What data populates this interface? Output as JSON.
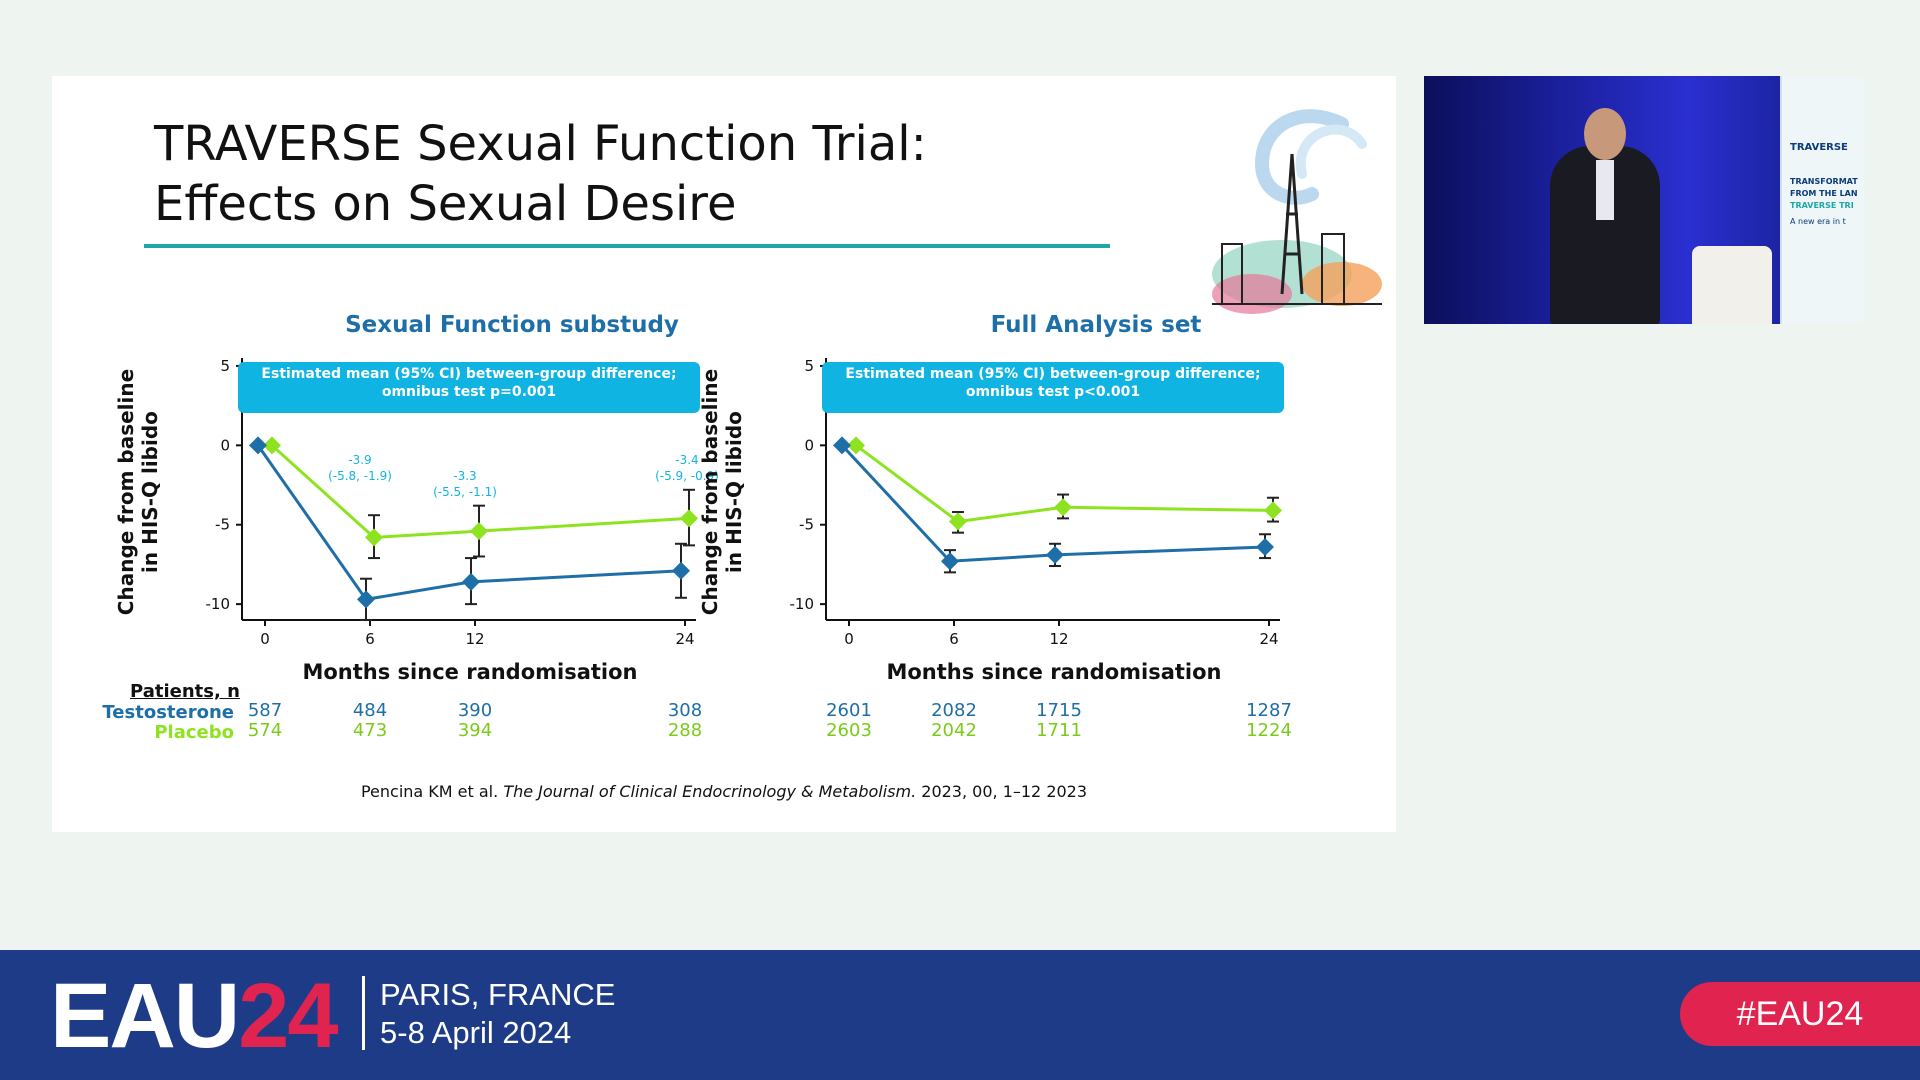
{
  "slide": {
    "title_line1": "TRAVERSE Sexual Function Trial:",
    "title_line2": "Effects on Sexual Desire",
    "citation_authors": "Pencina KM et al.",
    "citation_journal": "The Journal of Clinical Endocrinology & Metabolism.",
    "citation_rest": "2023, 00, 1–12 2023",
    "patients_label": "Patients, n",
    "testosterone_label": "Testosterone",
    "placebo_label": "Placebo"
  },
  "colors": {
    "testosterone": "#1e6fa8",
    "placebo": "#8ee320",
    "banner": "#10b4e2",
    "title_rule": "#1ea7a5",
    "footer": "#1e3b87",
    "accent_red": "#e0234f"
  },
  "chart_data": [
    {
      "type": "line",
      "title": "Sexual Function substudy",
      "banner_line1": "Estimated mean (95% CI) between-group difference;",
      "banner_line2": "omnibus test p=0.001",
      "ylabel_line1": "Change from baseline",
      "ylabel_line2": "in HIS-Q libido",
      "xlabel": "Months since randomisation",
      "x": [
        0,
        6,
        12,
        24
      ],
      "xticks": [
        "0",
        "6",
        "12",
        "24"
      ],
      "yticks": [
        "5",
        "0",
        "-5",
        "-10"
      ],
      "ylim": [
        -11,
        5.5
      ],
      "series": [
        {
          "name": "Testosterone",
          "values": [
            0,
            -9.7,
            -8.6,
            -7.9
          ],
          "ci_low": [
            0,
            -11.0,
            -10.0,
            -9.6
          ],
          "ci_high": [
            0,
            -8.4,
            -7.1,
            -6.2
          ]
        },
        {
          "name": "Placebo",
          "values": [
            0,
            -5.8,
            -5.4,
            -4.6
          ],
          "ci_low": [
            0,
            -7.1,
            -7.0,
            -6.3
          ],
          "ci_high": [
            0,
            -4.4,
            -3.8,
            -2.8
          ]
        }
      ],
      "annotations": [
        {
          "x": 6,
          "label1": "-3.9",
          "label2": "(-5.8, -1.9)"
        },
        {
          "x": 12,
          "label1": "-3.3",
          "label2": "(-5.5, -1.1)"
        },
        {
          "x": 24,
          "label1": "-3.4",
          "label2": "(-5.9, -0.9)"
        }
      ],
      "patients": {
        "testosterone": [
          "587",
          "484",
          "390",
          "308"
        ],
        "placebo": [
          "574",
          "473",
          "394",
          "288"
        ]
      }
    },
    {
      "type": "line",
      "title": "Full Analysis set",
      "banner_line1": "Estimated mean (95% CI) between-group difference;",
      "banner_line2": "omnibus test p<0.001",
      "ylabel_line1": "Change from baseline",
      "ylabel_line2": "in HIS-Q libido",
      "xlabel": "Months since randomisation",
      "x": [
        0,
        6,
        12,
        24
      ],
      "xticks": [
        "0",
        "6",
        "12",
        "24"
      ],
      "yticks": [
        "5",
        "0",
        "-5",
        "-10"
      ],
      "ylim": [
        -11,
        5.5
      ],
      "series": [
        {
          "name": "Testosterone",
          "values": [
            0,
            -7.3,
            -6.9,
            -6.4
          ],
          "ci_low": [
            0,
            -8.0,
            -7.6,
            -7.1
          ],
          "ci_high": [
            0,
            -6.6,
            -6.2,
            -5.6
          ]
        },
        {
          "name": "Placebo",
          "values": [
            0,
            -4.8,
            -3.9,
            -4.1
          ],
          "ci_low": [
            0,
            -5.5,
            -4.6,
            -4.8
          ],
          "ci_high": [
            0,
            -4.2,
            -3.1,
            -3.3
          ]
        }
      ],
      "annotations": [],
      "patients": {
        "testosterone": [
          "2601",
          "2082",
          "1715",
          "1287"
        ],
        "placebo": [
          "2603",
          "2042",
          "1711",
          "1224"
        ]
      }
    }
  ],
  "video": {
    "stand_brand": "TRAVERSE",
    "stand_line1": "TRANSFORMAT",
    "stand_line2": "FROM THE LAN",
    "stand_line3": "TRAVERSE TRI",
    "stand_line4": "A new era in t"
  },
  "footer": {
    "logo_eau": "EAU",
    "logo_year": "24",
    "location": "PARIS, FRANCE",
    "dates": "5-8 April 2024",
    "hashtag": "#EAU24"
  }
}
